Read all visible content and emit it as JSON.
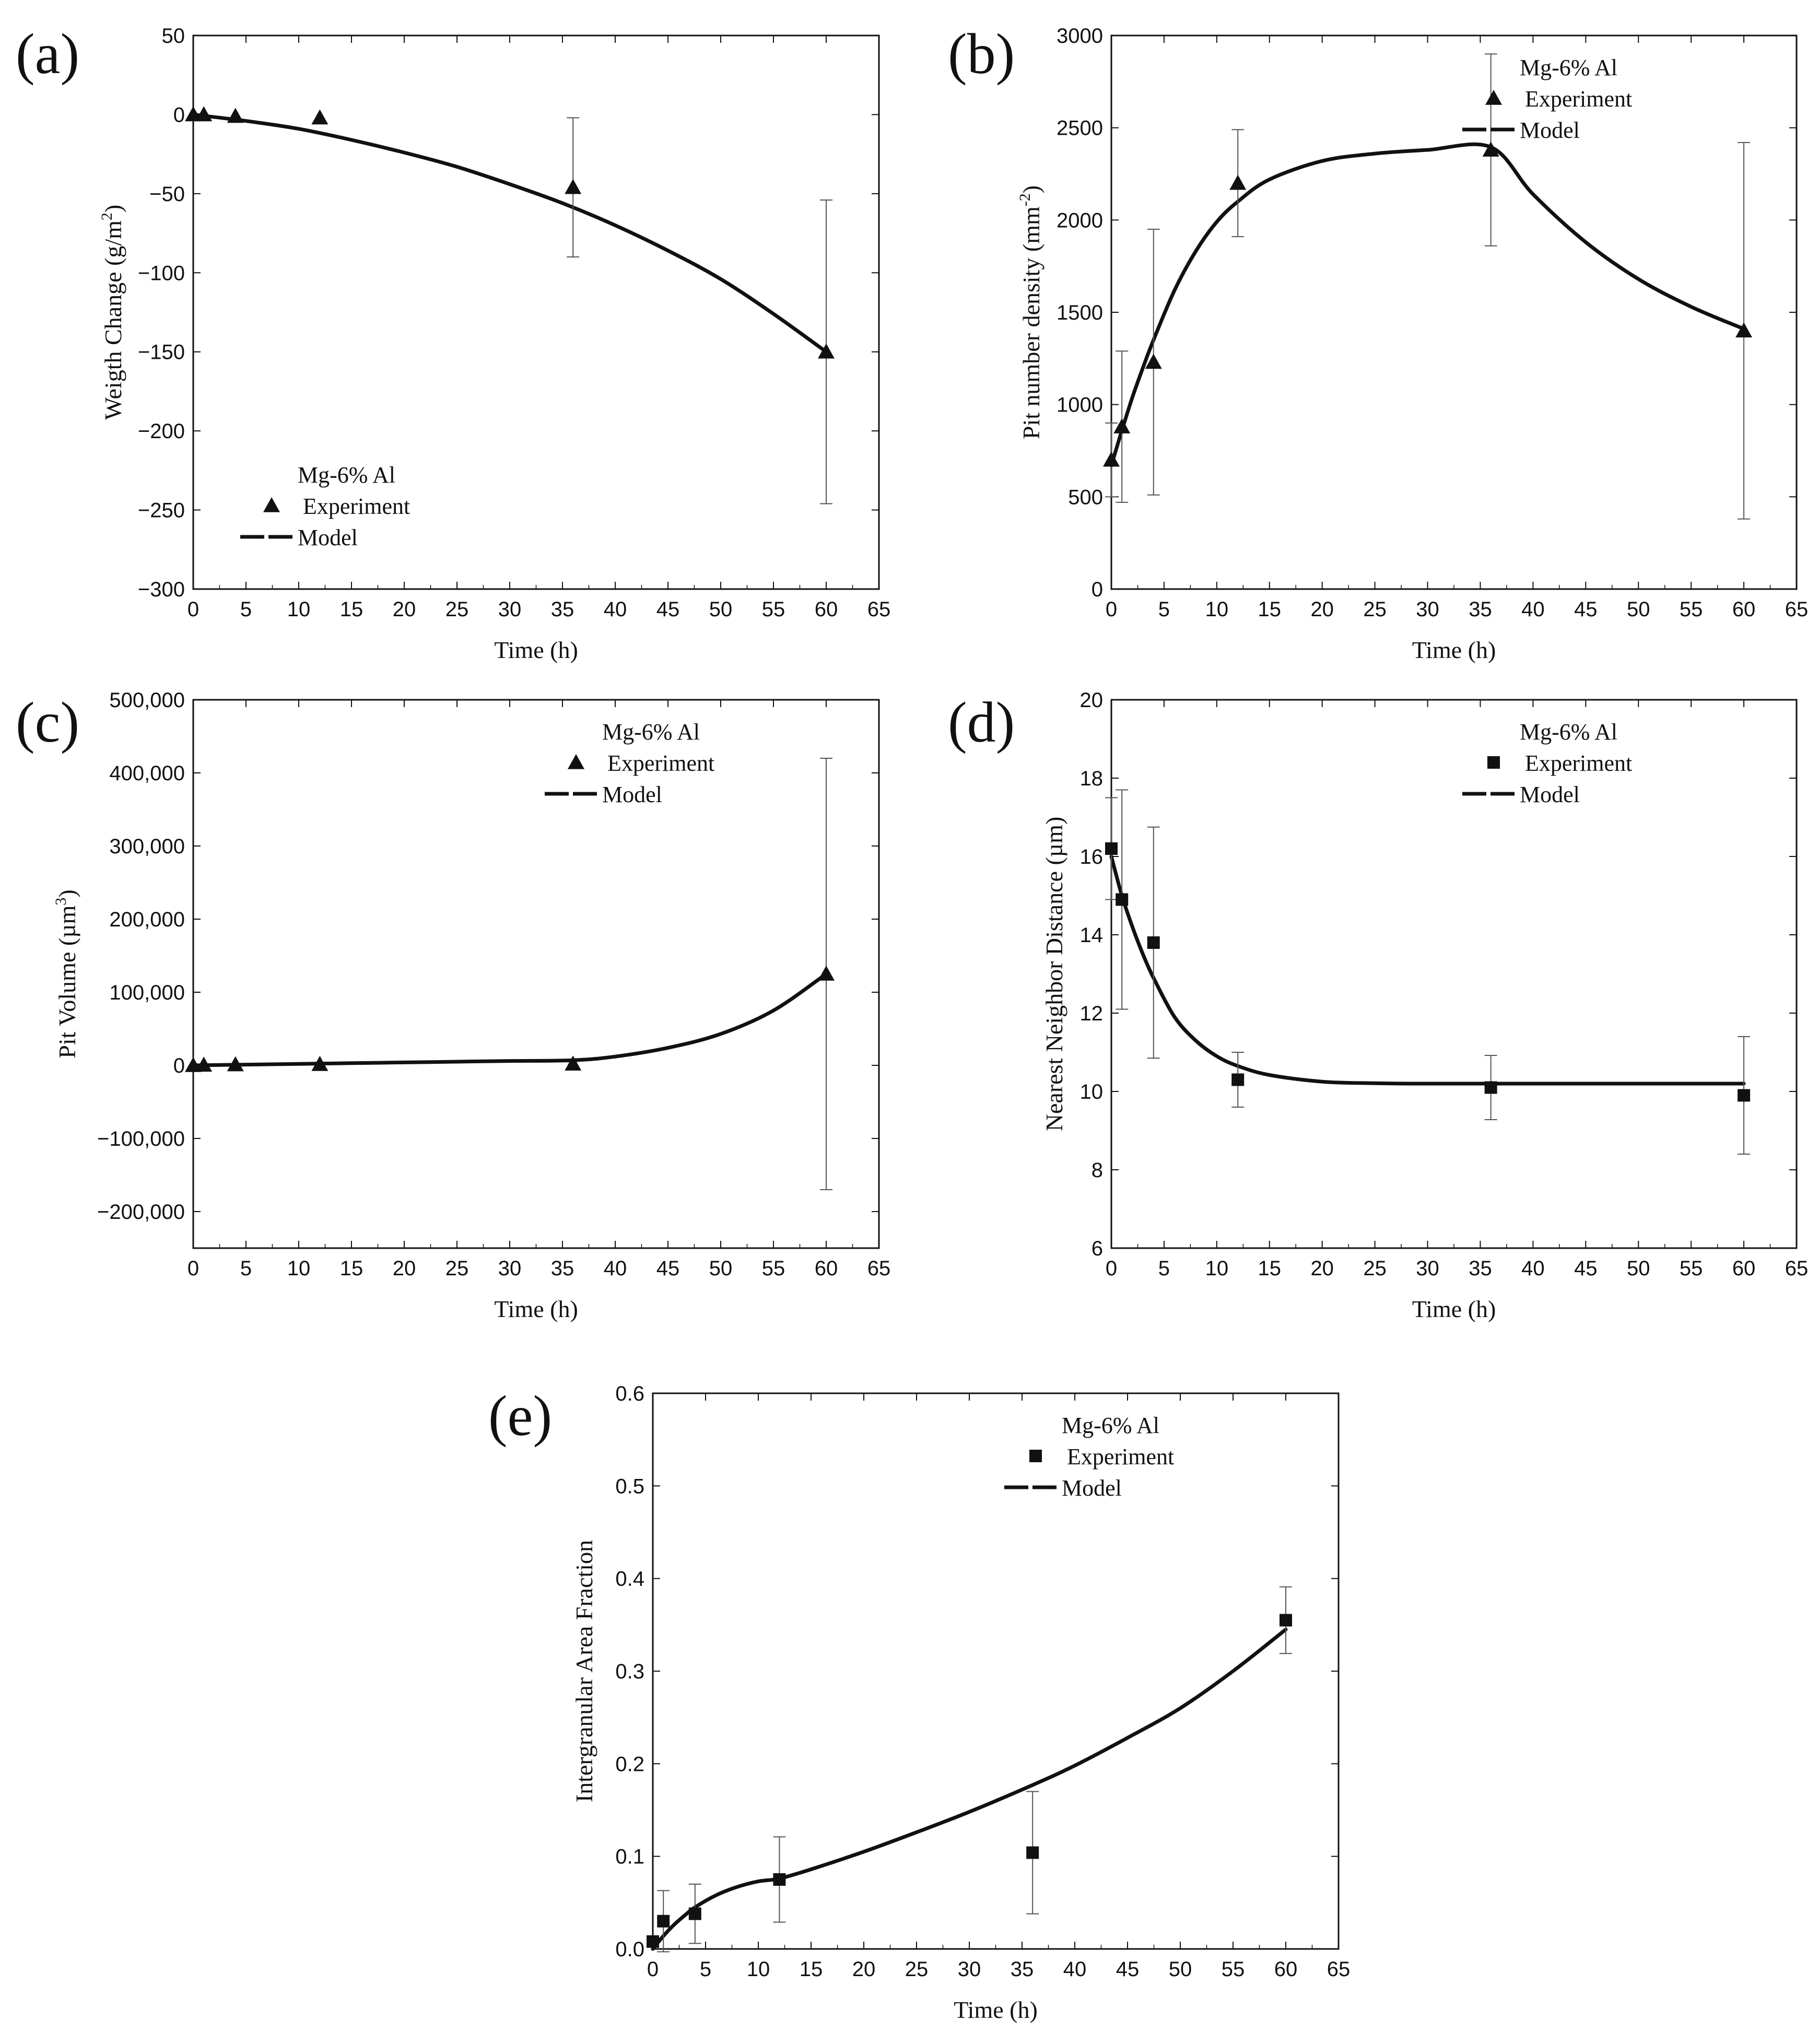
{
  "chart_data": [
    {
      "panel": "(a)",
      "type": "line+scatter",
      "xlabel": "Time (h)",
      "ylabel": "Weigth Change (g/m",
      "ylabel_sup": "2",
      "ylabel_end": ")",
      "xlim": [
        0,
        65
      ],
      "ylim": [
        -300,
        50
      ],
      "xticks": [
        0,
        5,
        10,
        15,
        20,
        25,
        30,
        35,
        40,
        45,
        50,
        55,
        60,
        65
      ],
      "yticks": [
        -300,
        -250,
        -200,
        -150,
        -100,
        -50,
        0,
        50
      ],
      "xtick_labels": [
        "0",
        "5",
        "10",
        "15",
        "20",
        "25",
        "30",
        "35",
        "40",
        "45",
        "50",
        "55",
        "60",
        "65"
      ],
      "ytick_labels": [
        "−300",
        "−250",
        "−200",
        "−150",
        "−100",
        "−50",
        "0",
        "50"
      ],
      "marker": "triangle",
      "legend": {
        "title": "Mg-6% Al",
        "experiment": "Experiment",
        "model": "Model"
      },
      "legend_position": "bottom-left",
      "experiment": {
        "x": [
          0,
          1,
          4,
          12,
          36,
          60
        ],
        "y": [
          0,
          0,
          -1,
          -2,
          -46,
          -150
        ],
        "err": [
          0,
          0,
          0,
          0,
          44,
          96
        ]
      },
      "model": {
        "x": [
          0,
          5,
          10,
          15,
          20,
          25,
          30,
          35,
          40,
          45,
          50,
          55,
          60
        ],
        "y": [
          0,
          -4,
          -9,
          -16,
          -24,
          -33,
          -44,
          -56,
          -70,
          -86,
          -104,
          -126,
          -150
        ]
      }
    },
    {
      "panel": "(b)",
      "type": "line+scatter",
      "xlabel": "Time (h)",
      "ylabel": "Pit number density (mm",
      "ylabel_sup": "-2",
      "ylabel_end": ")",
      "xlim": [
        0,
        65
      ],
      "ylim": [
        0,
        3000
      ],
      "xticks": [
        0,
        5,
        10,
        15,
        20,
        25,
        30,
        35,
        40,
        45,
        50,
        55,
        60,
        65
      ],
      "yticks": [
        0,
        500,
        1000,
        1500,
        2000,
        2500,
        3000
      ],
      "xtick_labels": [
        "0",
        "5",
        "10",
        "15",
        "20",
        "25",
        "30",
        "35",
        "40",
        "45",
        "50",
        "55",
        "60",
        "65"
      ],
      "ytick_labels": [
        "0",
        "500",
        "1000",
        "1500",
        "2000",
        "2500",
        "3000"
      ],
      "marker": "triangle",
      "legend": {
        "title": "Mg-6% Al",
        "experiment": "Experiment",
        "model": "Model"
      },
      "legend_position": "top-right",
      "experiment": {
        "x": [
          0,
          1,
          4,
          12,
          36,
          60
        ],
        "y": [
          700,
          880,
          1230,
          2200,
          2380,
          1400
        ],
        "err": [
          200,
          410,
          720,
          290,
          520,
          1020
        ]
      },
      "model": {
        "x": [
          0,
          1,
          2,
          3,
          4,
          6,
          8,
          10,
          12,
          15,
          20,
          25,
          30,
          36,
          40,
          45,
          50,
          55,
          60
        ],
        "y": [
          670,
          860,
          1040,
          1200,
          1350,
          1620,
          1830,
          1990,
          2100,
          2220,
          2320,
          2360,
          2380,
          2395,
          2140,
          1880,
          1680,
          1530,
          1410
        ]
      }
    },
    {
      "panel": "(c)",
      "type": "line+scatter",
      "xlabel": "Time (h)",
      "ylabel": "Pit Volume (µm",
      "ylabel_sup": "3",
      "ylabel_end": ")",
      "xlim": [
        0,
        65
      ],
      "ylim": [
        -250000,
        500000
      ],
      "xticks": [
        0,
        5,
        10,
        15,
        20,
        25,
        30,
        35,
        40,
        45,
        50,
        55,
        60,
        65
      ],
      "yticks": [
        -200000,
        -100000,
        0,
        100000,
        200000,
        300000,
        400000,
        500000
      ],
      "xtick_labels": [
        "0",
        "5",
        "10",
        "15",
        "20",
        "25",
        "30",
        "35",
        "40",
        "45",
        "50",
        "55",
        "60",
        "65"
      ],
      "ytick_labels": [
        "−200,000",
        "−100,000",
        "0",
        "100,000",
        "200,000",
        "300,000",
        "400,000",
        "500,000"
      ],
      "marker": "triangle",
      "legend": {
        "title": "Mg-6% Al",
        "experiment": "Experiment",
        "model": "Model"
      },
      "legend_position": "top-right",
      "experiment": {
        "x": [
          0,
          1,
          4,
          12,
          36,
          60
        ],
        "y": [
          0,
          500,
          1000,
          1500,
          2000,
          125000
        ],
        "err": [
          0,
          0,
          0,
          0,
          0,
          295000
        ]
      },
      "model": {
        "x": [
          0,
          5,
          10,
          15,
          20,
          25,
          30,
          36,
          40,
          45,
          50,
          55,
          60
        ],
        "y": [
          0,
          1000,
          2000,
          3000,
          4000,
          5000,
          6000,
          7000,
          12000,
          24000,
          43000,
          75000,
          125000
        ]
      }
    },
    {
      "panel": "(d)",
      "type": "line+scatter",
      "xlabel": "Time (h)",
      "ylabel": "Nearest Neighbor Distance (µm)",
      "xlim": [
        0,
        65
      ],
      "ylim": [
        6,
        20
      ],
      "xticks": [
        0,
        5,
        10,
        15,
        20,
        25,
        30,
        35,
        40,
        45,
        50,
        55,
        60,
        65
      ],
      "yticks": [
        6,
        8,
        10,
        12,
        14,
        16,
        18,
        20
      ],
      "xtick_labels": [
        "0",
        "5",
        "10",
        "15",
        "20",
        "25",
        "30",
        "35",
        "40",
        "45",
        "50",
        "55",
        "60",
        "65"
      ],
      "ytick_labels": [
        "6",
        "8",
        "10",
        "12",
        "14",
        "16",
        "18",
        "20"
      ],
      "marker": "square",
      "legend": {
        "title": "Mg-6% Al",
        "experiment": "Experiment",
        "model": "Model"
      },
      "legend_position": "top-right",
      "experiment": {
        "x": [
          0,
          1,
          4,
          12,
          36,
          60
        ],
        "y": [
          16.2,
          14.9,
          13.8,
          10.3,
          10.1,
          9.9
        ],
        "err": [
          1.3,
          2.8,
          2.95,
          0.7,
          0.82,
          1.5
        ]
      },
      "model": {
        "x": [
          0,
          1,
          2,
          3,
          4,
          6,
          8,
          10,
          12,
          15,
          20,
          25,
          30,
          40,
          50,
          60
        ],
        "y": [
          16.0,
          15.0,
          14.2,
          13.5,
          12.9,
          11.9,
          11.3,
          10.9,
          10.65,
          10.42,
          10.25,
          10.21,
          10.2,
          10.2,
          10.2,
          10.2
        ]
      }
    },
    {
      "panel": "(e)",
      "type": "line+scatter",
      "xlabel": "Time (h)",
      "ylabel": "Intergranular Area Fraction",
      "xlim": [
        0,
        65
      ],
      "ylim": [
        0,
        0.6
      ],
      "xticks": [
        0,
        5,
        10,
        15,
        20,
        25,
        30,
        35,
        40,
        45,
        50,
        55,
        60,
        65
      ],
      "yticks": [
        0,
        0.1,
        0.2,
        0.3,
        0.4,
        0.5,
        0.6
      ],
      "xtick_labels": [
        "0",
        "5",
        "10",
        "15",
        "20",
        "25",
        "30",
        "35",
        "40",
        "45",
        "50",
        "55",
        "60",
        "65"
      ],
      "ytick_labels": [
        "0.0",
        "0.1",
        "0.2",
        "0.3",
        "0.4",
        "0.5",
        "0.6"
      ],
      "marker": "square",
      "legend": {
        "title": "Mg-6% Al",
        "experiment": "Experiment",
        "model": "Model"
      },
      "legend_position": "top-right",
      "experiment": {
        "x": [
          0,
          1,
          4,
          12,
          36,
          60
        ],
        "y": [
          0.008,
          0.03,
          0.038,
          0.075,
          0.104,
          0.355
        ],
        "err": [
          0.004,
          0.033,
          0.032,
          0.046,
          0.066,
          0.036
        ]
      },
      "model": {
        "x": [
          0,
          1,
          2,
          3,
          4,
          6,
          8,
          10,
          12,
          15,
          20,
          25,
          30,
          36,
          40,
          45,
          50,
          55,
          60
        ],
        "y": [
          0.0,
          0.014,
          0.026,
          0.036,
          0.045,
          0.058,
          0.067,
          0.073,
          0.076,
          0.086,
          0.105,
          0.126,
          0.148,
          0.177,
          0.198,
          0.228,
          0.26,
          0.3,
          0.345
        ]
      }
    }
  ]
}
